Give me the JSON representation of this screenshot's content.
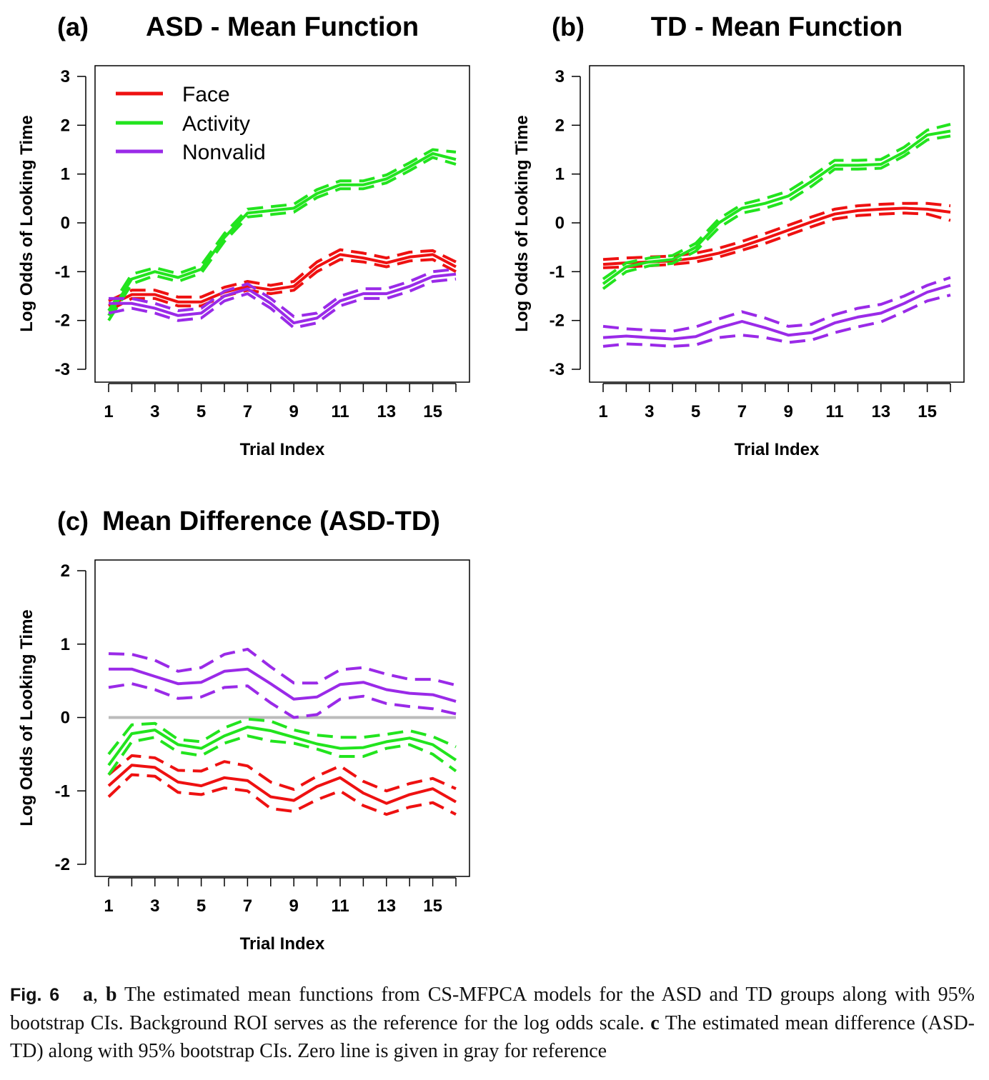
{
  "caption": {
    "fig_label": "Fig. 6",
    "a_label": "a",
    "sep": ", ",
    "b_label": "b",
    "text1": " The estimated mean functions from CS-MFPCA models for the ASD and TD groups along with 95% bootstrap CIs. Background ROI serves as the reference for the log odds scale. ",
    "c_label": "c",
    "text2": " The estimated mean difference (ASD-TD) along with 95% bootstrap CIs. Zero line is given in gray for reference"
  },
  "colors": {
    "face": "#ee1111",
    "activity": "#22e41e",
    "nonvalid": "#9a2ae8",
    "zero_line": "#bbbbbb"
  },
  "chart_data": [
    {
      "panel": "(a)",
      "type": "line",
      "title": "ASD - Mean Function",
      "xlabel": "Trial Index",
      "ylabel": "Log Odds of Looking Time",
      "xlim": [
        1,
        16
      ],
      "ylim": [
        -3,
        3
      ],
      "xticks": [
        1,
        2,
        3,
        4,
        5,
        6,
        7,
        8,
        9,
        10,
        11,
        12,
        13,
        14,
        15,
        16
      ],
      "xticklabels": [
        "1",
        "",
        "3",
        "",
        "5",
        "",
        "7",
        "",
        "9",
        "",
        "11",
        "",
        "13",
        "",
        "15",
        ""
      ],
      "yticks": [
        -3,
        -2,
        -1,
        0,
        1,
        2,
        3
      ],
      "legend": {
        "position": "top-left",
        "entries": [
          "Face",
          "Activity",
          "Nonvalid"
        ]
      },
      "x": [
        1,
        2,
        3,
        4,
        5,
        6,
        7,
        8,
        9,
        10,
        11,
        12,
        13,
        14,
        15,
        16
      ],
      "series": [
        {
          "name": "Face",
          "color": "#ee1111",
          "mean": [
            -1.7,
            -1.47,
            -1.47,
            -1.62,
            -1.62,
            -1.42,
            -1.3,
            -1.37,
            -1.3,
            -0.9,
            -0.65,
            -0.72,
            -0.82,
            -0.7,
            -0.65,
            -0.9
          ],
          "lower": [
            -1.8,
            -1.55,
            -1.55,
            -1.7,
            -1.7,
            -1.5,
            -1.38,
            -1.45,
            -1.38,
            -1.0,
            -0.75,
            -0.8,
            -0.9,
            -0.78,
            -0.75,
            -1.0
          ],
          "upper": [
            -1.6,
            -1.38,
            -1.38,
            -1.52,
            -1.52,
            -1.32,
            -1.2,
            -1.28,
            -1.2,
            -0.8,
            -0.55,
            -0.62,
            -0.72,
            -0.6,
            -0.57,
            -0.8
          ]
        },
        {
          "name": "Activity",
          "color": "#22e41e",
          "mean": [
            -1.9,
            -1.15,
            -1.0,
            -1.12,
            -0.95,
            -0.3,
            0.2,
            0.25,
            0.3,
            0.6,
            0.78,
            0.78,
            0.9,
            1.15,
            1.42,
            1.3
          ],
          "lower": [
            -2.0,
            -1.25,
            -1.08,
            -1.2,
            -1.03,
            -0.38,
            0.12,
            0.17,
            0.22,
            0.52,
            0.7,
            0.7,
            0.82,
            1.07,
            1.34,
            1.2
          ],
          "upper": [
            -1.8,
            -1.05,
            -0.92,
            -1.04,
            -0.87,
            -0.22,
            0.28,
            0.33,
            0.38,
            0.68,
            0.86,
            0.86,
            0.98,
            1.23,
            1.5,
            1.45
          ]
        },
        {
          "name": "Nonvalid",
          "color": "#9a2ae8",
          "mean": [
            -1.65,
            -1.65,
            -1.75,
            -1.9,
            -1.85,
            -1.5,
            -1.35,
            -1.65,
            -2.05,
            -1.95,
            -1.6,
            -1.45,
            -1.45,
            -1.3,
            -1.1,
            -1.05
          ],
          "lower": [
            -1.85,
            -1.75,
            -1.85,
            -2.0,
            -1.95,
            -1.6,
            -1.45,
            -1.75,
            -2.15,
            -2.05,
            -1.7,
            -1.55,
            -1.55,
            -1.4,
            -1.2,
            -1.15
          ],
          "upper": [
            -1.55,
            -1.55,
            -1.65,
            -1.8,
            -1.75,
            -1.4,
            -1.25,
            -1.55,
            -1.92,
            -1.85,
            -1.5,
            -1.35,
            -1.35,
            -1.2,
            -1.0,
            -0.95
          ]
        }
      ]
    },
    {
      "panel": "(b)",
      "type": "line",
      "title": "TD - Mean Function",
      "xlabel": "Trial Index",
      "ylabel": "Log Odds of Looking Time",
      "xlim": [
        1,
        16
      ],
      "ylim": [
        -3,
        3
      ],
      "xticks": [
        1,
        2,
        3,
        4,
        5,
        6,
        7,
        8,
        9,
        10,
        11,
        12,
        13,
        14,
        15,
        16
      ],
      "xticklabels": [
        "1",
        "",
        "3",
        "",
        "5",
        "",
        "7",
        "",
        "9",
        "",
        "11",
        "",
        "13",
        "",
        "15",
        ""
      ],
      "yticks": [
        -3,
        -2,
        -1,
        0,
        1,
        2,
        3
      ],
      "x": [
        1,
        2,
        3,
        4,
        5,
        6,
        7,
        8,
        9,
        10,
        11,
        12,
        13,
        14,
        15,
        16
      ],
      "series": [
        {
          "name": "Face",
          "color": "#ee1111",
          "mean": [
            -0.85,
            -0.82,
            -0.8,
            -0.78,
            -0.72,
            -0.62,
            -0.48,
            -0.32,
            -0.15,
            0.02,
            0.18,
            0.25,
            0.28,
            0.3,
            0.28,
            0.22
          ],
          "lower": [
            -0.92,
            -0.9,
            -0.88,
            -0.85,
            -0.8,
            -0.7,
            -0.56,
            -0.42,
            -0.25,
            -0.08,
            0.08,
            0.15,
            0.18,
            0.2,
            0.18,
            0.05
          ],
          "upper": [
            -0.75,
            -0.72,
            -0.7,
            -0.68,
            -0.62,
            -0.52,
            -0.38,
            -0.22,
            -0.05,
            0.12,
            0.28,
            0.35,
            0.38,
            0.4,
            0.4,
            0.35
          ]
        },
        {
          "name": "Activity",
          "color": "#22e41e",
          "mean": [
            -1.25,
            -0.9,
            -0.8,
            -0.75,
            -0.5,
            0.0,
            0.3,
            0.4,
            0.55,
            0.85,
            1.18,
            1.18,
            1.2,
            1.45,
            1.8,
            1.88
          ],
          "lower": [
            -1.35,
            -1.0,
            -0.88,
            -0.83,
            -0.58,
            -0.1,
            0.2,
            0.3,
            0.45,
            0.75,
            1.1,
            1.1,
            1.12,
            1.37,
            1.7,
            1.78
          ],
          "upper": [
            -1.15,
            -0.82,
            -0.72,
            -0.67,
            -0.42,
            0.08,
            0.38,
            0.5,
            0.65,
            0.95,
            1.28,
            1.28,
            1.3,
            1.55,
            1.9,
            2.02
          ]
        },
        {
          "name": "Nonvalid",
          "color": "#9a2ae8",
          "mean": [
            -2.35,
            -2.32,
            -2.35,
            -2.38,
            -2.33,
            -2.15,
            -2.02,
            -2.15,
            -2.3,
            -2.25,
            -2.05,
            -1.93,
            -1.85,
            -1.65,
            -1.42,
            -1.28
          ],
          "lower": [
            -2.53,
            -2.48,
            -2.5,
            -2.53,
            -2.5,
            -2.35,
            -2.3,
            -2.35,
            -2.45,
            -2.4,
            -2.25,
            -2.13,
            -2.03,
            -1.82,
            -1.6,
            -1.48
          ],
          "upper": [
            -2.12,
            -2.17,
            -2.2,
            -2.22,
            -2.13,
            -1.97,
            -1.82,
            -1.95,
            -2.12,
            -2.08,
            -1.88,
            -1.75,
            -1.67,
            -1.5,
            -1.28,
            -1.12
          ]
        }
      ]
    },
    {
      "panel": "(c)",
      "type": "line",
      "title": "Mean Difference (ASD-TD)",
      "xlabel": "Trial Index",
      "ylabel": "Log Odds of Looking Time",
      "xlim": [
        1,
        16
      ],
      "ylim": [
        -2,
        2
      ],
      "xticks": [
        1,
        2,
        3,
        4,
        5,
        6,
        7,
        8,
        9,
        10,
        11,
        12,
        13,
        14,
        15,
        16
      ],
      "xticklabels": [
        "1",
        "",
        "3",
        "",
        "5",
        "",
        "7",
        "",
        "9",
        "",
        "11",
        "",
        "13",
        "",
        "15",
        ""
      ],
      "yticks": [
        -2,
        -1,
        0,
        1,
        2
      ],
      "reference_line": {
        "y": 0,
        "color": "#bbbbbb"
      },
      "x": [
        1,
        2,
        3,
        4,
        5,
        6,
        7,
        8,
        9,
        10,
        11,
        12,
        13,
        14,
        15,
        16
      ],
      "series": [
        {
          "name": "Face",
          "color": "#ee1111",
          "mean": [
            -0.93,
            -0.65,
            -0.68,
            -0.88,
            -0.93,
            -0.82,
            -0.86,
            -1.08,
            -1.13,
            -0.94,
            -0.82,
            -1.03,
            -1.17,
            -1.05,
            -0.97,
            -1.15
          ],
          "lower": [
            -1.08,
            -0.78,
            -0.8,
            -1.02,
            -1.05,
            -0.96,
            -1.0,
            -1.24,
            -1.28,
            -1.12,
            -1.0,
            -1.2,
            -1.32,
            -1.22,
            -1.16,
            -1.32
          ],
          "upper": [
            -0.78,
            -0.52,
            -0.55,
            -0.72,
            -0.73,
            -0.6,
            -0.66,
            -0.88,
            -0.98,
            -0.8,
            -0.66,
            -0.87,
            -1.0,
            -0.9,
            -0.83,
            -0.97
          ]
        },
        {
          "name": "Activity",
          "color": "#22e41e",
          "mean": [
            -0.65,
            -0.22,
            -0.17,
            -0.37,
            -0.42,
            -0.25,
            -0.13,
            -0.18,
            -0.27,
            -0.36,
            -0.42,
            -0.41,
            -0.33,
            -0.28,
            -0.37,
            -0.58
          ],
          "lower": [
            -0.78,
            -0.33,
            -0.27,
            -0.47,
            -0.52,
            -0.35,
            -0.25,
            -0.32,
            -0.35,
            -0.43,
            -0.53,
            -0.53,
            -0.42,
            -0.37,
            -0.5,
            -0.73
          ],
          "upper": [
            -0.5,
            -0.1,
            -0.08,
            -0.3,
            -0.33,
            -0.14,
            -0.02,
            -0.05,
            -0.17,
            -0.24,
            -0.27,
            -0.27,
            -0.23,
            -0.18,
            -0.26,
            -0.4
          ]
        },
        {
          "name": "Nonvalid",
          "color": "#9a2ae8",
          "mean": [
            0.66,
            0.66,
            0.56,
            0.46,
            0.48,
            0.63,
            0.66,
            0.46,
            0.25,
            0.28,
            0.45,
            0.48,
            0.38,
            0.33,
            0.31,
            0.22
          ],
          "lower": [
            0.41,
            0.46,
            0.38,
            0.26,
            0.28,
            0.41,
            0.43,
            0.2,
            0.0,
            0.04,
            0.25,
            0.29,
            0.19,
            0.15,
            0.12,
            0.05
          ],
          "upper": [
            0.87,
            0.86,
            0.78,
            0.63,
            0.68,
            0.86,
            0.93,
            0.69,
            0.47,
            0.47,
            0.65,
            0.68,
            0.59,
            0.52,
            0.52,
            0.44
          ]
        }
      ]
    }
  ]
}
